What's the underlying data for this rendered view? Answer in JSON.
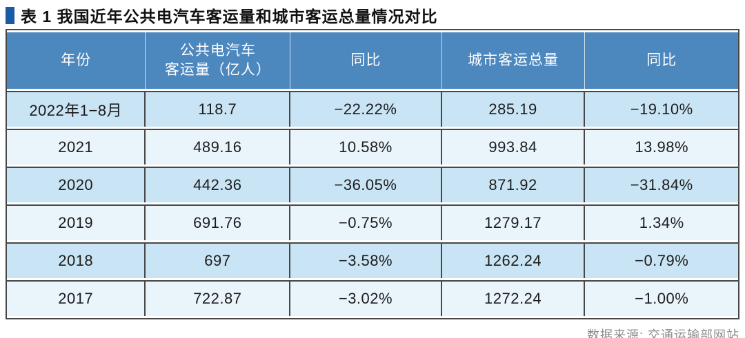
{
  "title": {
    "text": "表 1 我国近年公共电汽车客运量和城市客运总量情况对比"
  },
  "table": {
    "columns": [
      "年份",
      "公共电汽车\n客运量（亿人）",
      "同比",
      "城市客运总量",
      "同比"
    ],
    "rows": [
      {
        "year": "2022年1−8月",
        "bus_volume": "118.7",
        "bus_yoy": "−22.22%",
        "city_total": "285.19",
        "city_yoy": "−19.10%"
      },
      {
        "year": "2021",
        "bus_volume": "489.16",
        "bus_yoy": "10.58%",
        "city_total": "993.84",
        "city_yoy": "13.98%"
      },
      {
        "year": "2020",
        "bus_volume": "442.36",
        "bus_yoy": "−36.05%",
        "city_total": "871.92",
        "city_yoy": "−31.84%"
      },
      {
        "year": "2019",
        "bus_volume": "691.76",
        "bus_yoy": "−0.75%",
        "city_total": "1279.17",
        "city_yoy": "1.34%"
      },
      {
        "year": "2018",
        "bus_volume": "697",
        "bus_yoy": "−3.58%",
        "city_total": "1262.24",
        "city_yoy": "−0.79%"
      },
      {
        "year": "2017",
        "bus_volume": "722.87",
        "bus_yoy": "−3.02%",
        "city_total": "1272.24",
        "city_yoy": "−1.00%"
      }
    ]
  },
  "footer": {
    "source": "数据来源: 交通运输部网站"
  },
  "colors": {
    "title_bullet": "#1b5aa7",
    "header_bg": "#4c87be",
    "row_odd": "#c9e4f4",
    "row_even": "#eaf4fb",
    "border": "#474747",
    "footer_text": "#8c8c8c"
  },
  "chart_data": {
    "type": "table",
    "title": "表 1 我国近年公共电汽车客运量和城市客运总量情况对比",
    "columns": [
      "年份",
      "公共电汽车客运量（亿人）",
      "同比",
      "城市客运总量",
      "同比"
    ],
    "rows": [
      [
        "2022年1−8月",
        118.7,
        "−22.22%",
        285.19,
        "−19.10%"
      ],
      [
        "2021",
        489.16,
        "10.58%",
        993.84,
        "13.98%"
      ],
      [
        "2020",
        442.36,
        "−36.05%",
        871.92,
        "−31.84%"
      ],
      [
        "2019",
        691.76,
        "−0.75%",
        1279.17,
        "1.34%"
      ],
      [
        "2018",
        697,
        "−3.58%",
        1262.24,
        "−0.79%"
      ],
      [
        "2017",
        722.87,
        "−3.02%",
        1272.24,
        "−1.00%"
      ]
    ],
    "source": "数据来源: 交通运输部网站",
    "layout_hints": {
      "header_background": "#4c87be",
      "alternating_rows": [
        "#c9e4f4",
        "#eaf4fb"
      ],
      "grid": true
    }
  }
}
